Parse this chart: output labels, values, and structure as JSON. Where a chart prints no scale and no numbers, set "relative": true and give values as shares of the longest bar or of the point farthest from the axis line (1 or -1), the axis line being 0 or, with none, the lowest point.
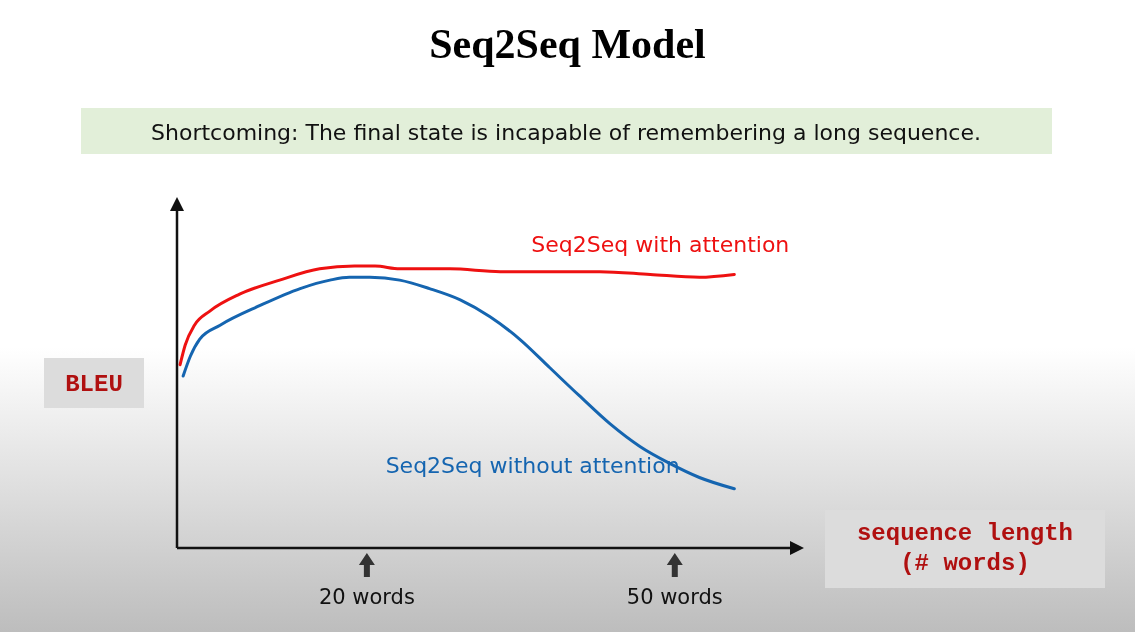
{
  "chart_data": {
    "type": "line",
    "title": "Seq2Seq Model",
    "subtitle": "Shortcoming: The final state is incapable of remembering a long sequence.",
    "xlabel": "sequence length\n(# words)",
    "ylabel": "BLEU",
    "relative": true,
    "legend": false,
    "grid": false,
    "marker": "none",
    "xlim": [
      1.5,
      62.2
    ],
    "xticks": [
      {
        "value": 20,
        "label": "20 words"
      },
      {
        "value": 50,
        "label": "50 words"
      }
    ],
    "series": [
      {
        "name": "Seq2Seq with attention",
        "color": "#ee1111",
        "x": [
          1.8,
          2.3,
          3.2,
          4.7,
          7.6,
          11.5,
          15.4,
          18.8,
          20.8,
          23.2,
          28.1,
          33.0,
          37.8,
          42.7,
          47.6,
          52.4,
          55.8
        ],
        "values": [
          0.65,
          0.72,
          0.79,
          0.84,
          0.9,
          0.95,
          0.99,
          1.0,
          1.0,
          0.99,
          0.99,
          0.98,
          0.98,
          0.98,
          0.97,
          0.96,
          0.97
        ]
      },
      {
        "name": "Seq2Seq without attention",
        "color": "#1565b0",
        "x": [
          2.1,
          2.8,
          3.7,
          5.7,
          9.6,
          13.5,
          16.4,
          18.3,
          20.3,
          23.2,
          26.1,
          29.1,
          32.0,
          34.9,
          37.8,
          40.7,
          43.7,
          46.6,
          49.5,
          52.4,
          55.8
        ],
        "values": [
          0.61,
          0.68,
          0.74,
          0.79,
          0.86,
          0.92,
          0.95,
          0.96,
          0.96,
          0.95,
          0.92,
          0.88,
          0.82,
          0.74,
          0.64,
          0.54,
          0.44,
          0.36,
          0.3,
          0.25,
          0.21
        ]
      }
    ]
  }
}
